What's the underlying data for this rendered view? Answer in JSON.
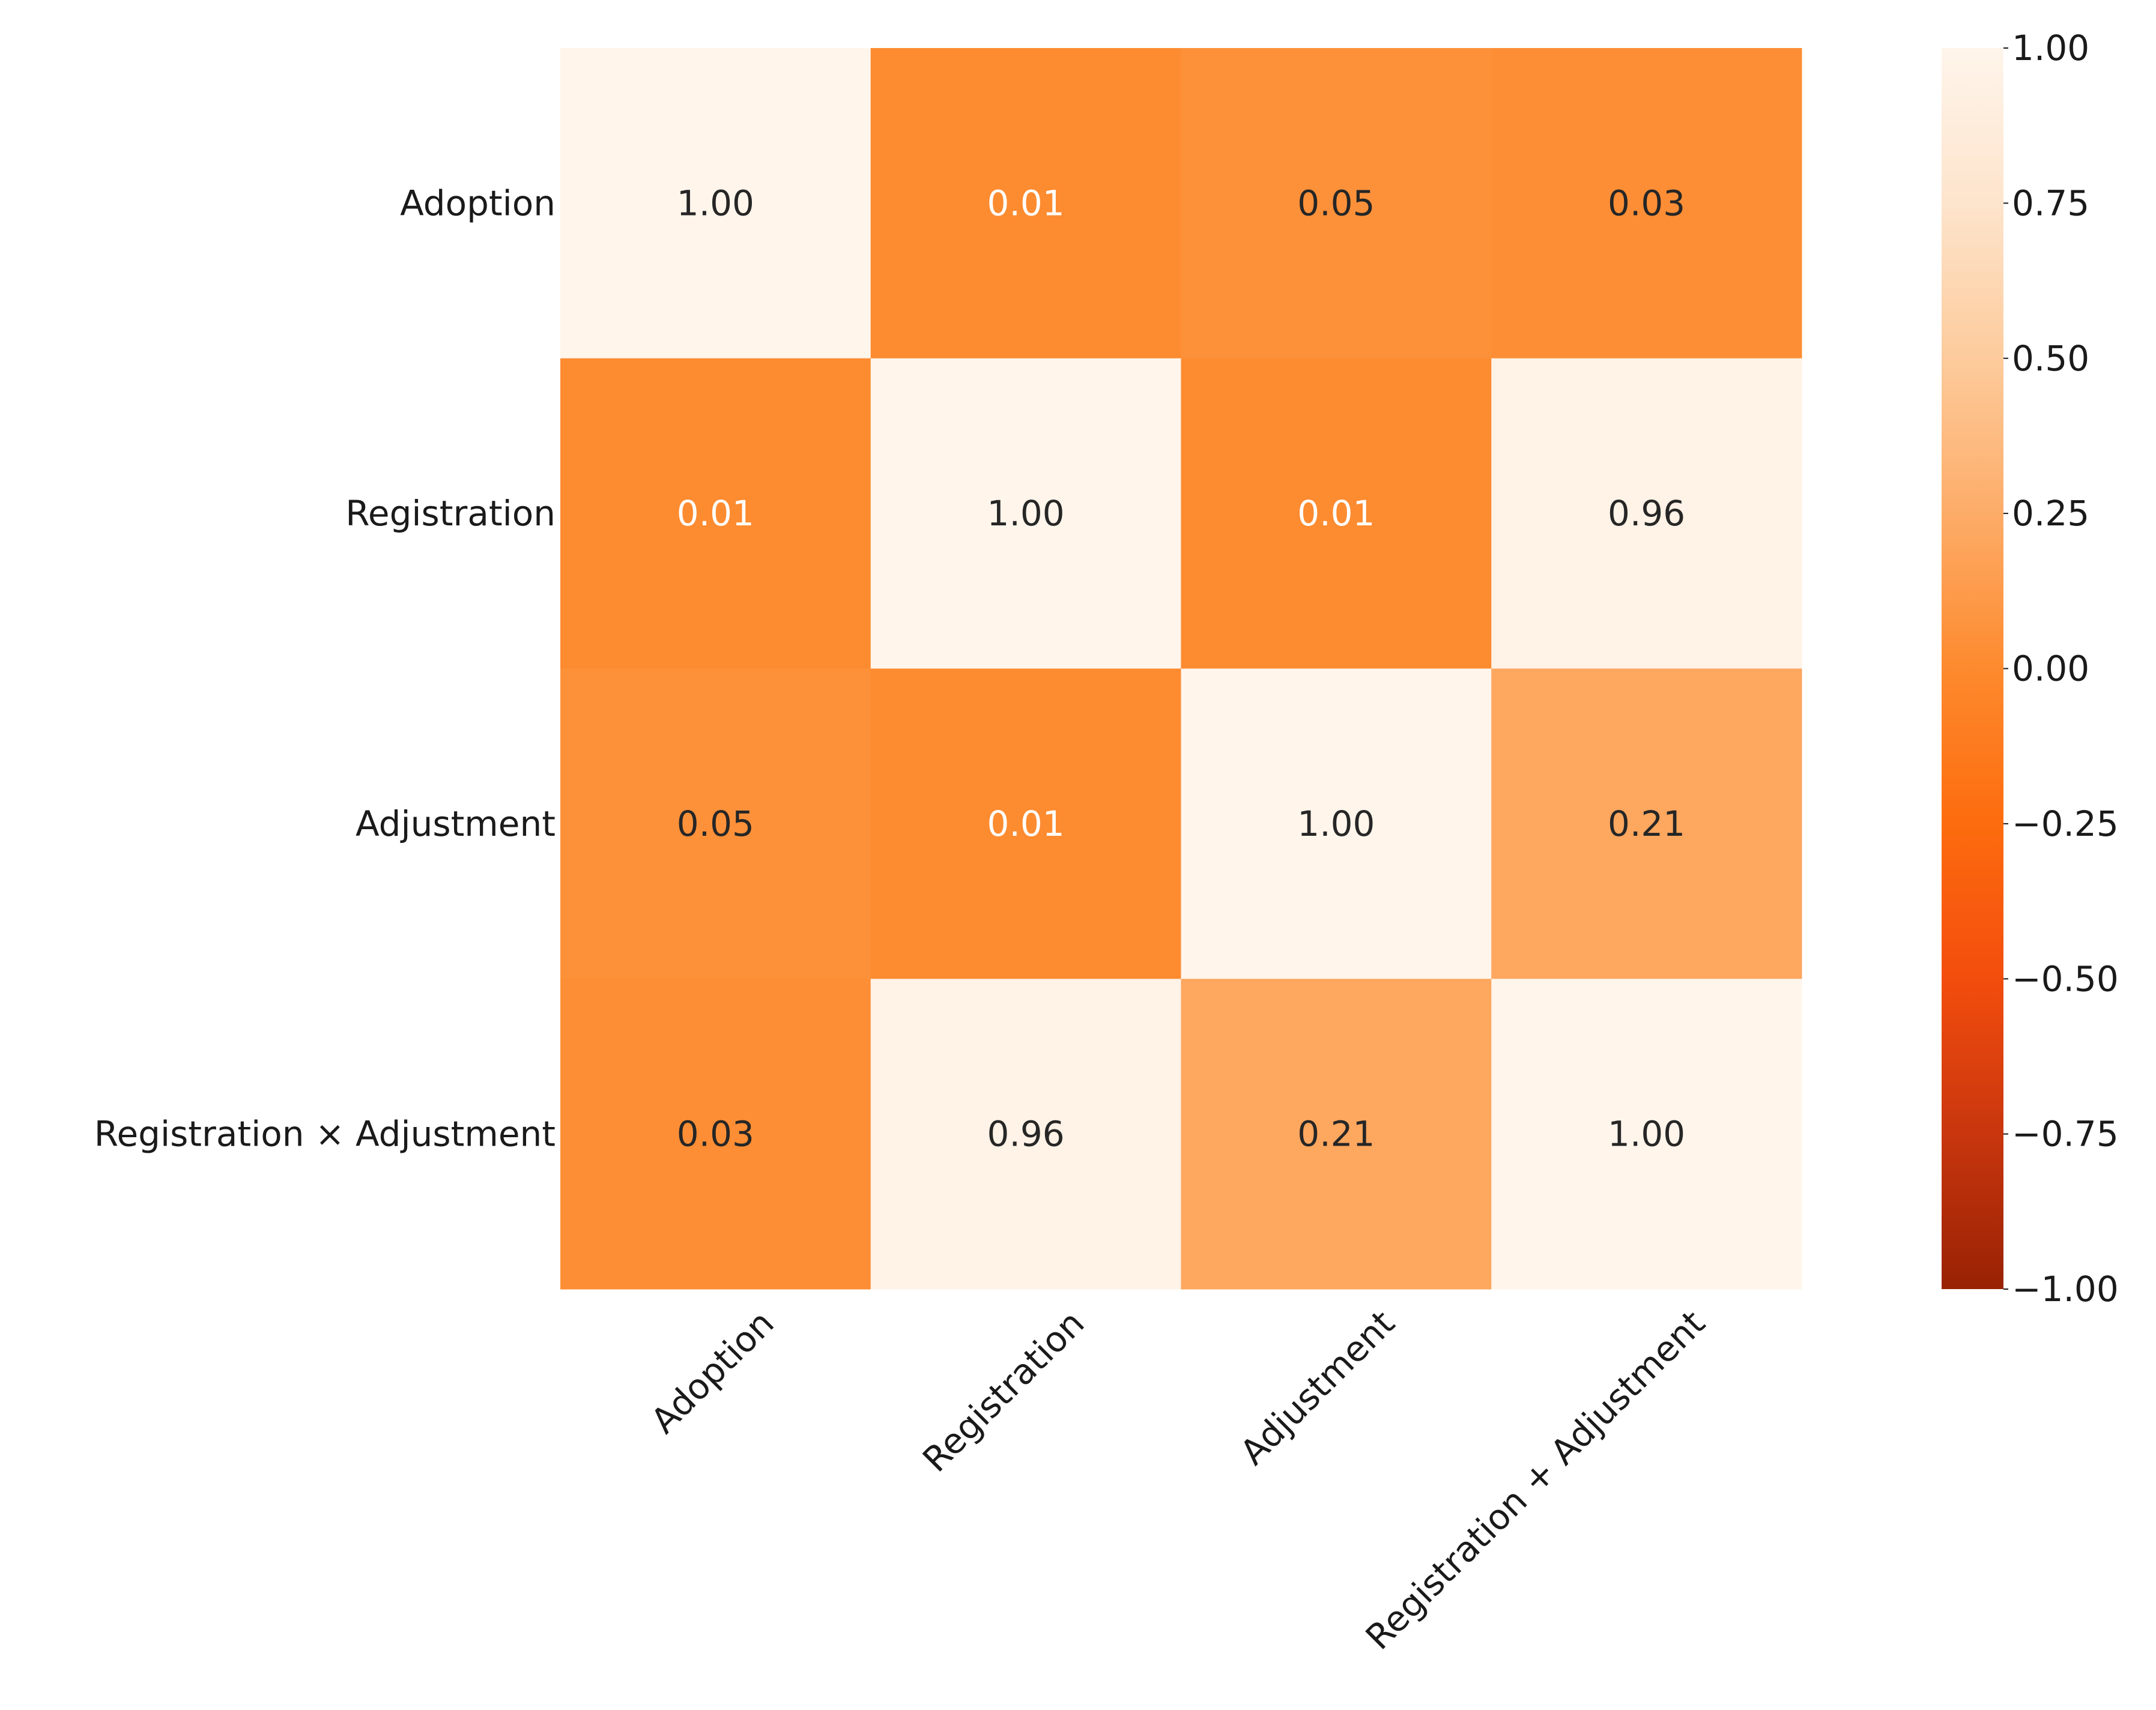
{
  "chart_data": {
    "type": "heatmap",
    "title": "",
    "xlabel": "",
    "ylabel": "",
    "row_labels": [
      "Adoption",
      "Registration",
      "Adjustment",
      "Registration × Adjustment"
    ],
    "col_labels": [
      "Adoption",
      "Registration",
      "Adjustment",
      "Registration + Adjustment"
    ],
    "values": [
      [
        1.0,
        0.01,
        0.05,
        0.03
      ],
      [
        0.01,
        1.0,
        0.01,
        0.96
      ],
      [
        0.05,
        0.01,
        1.0,
        0.21
      ],
      [
        0.03,
        0.96,
        0.21,
        1.0
      ]
    ],
    "cell_labels": [
      [
        "1.00",
        "0.01",
        "0.05",
        "0.03"
      ],
      [
        "0.01",
        "1.00",
        "0.01",
        "0.96"
      ],
      [
        "0.05",
        "0.01",
        "1.00",
        "0.21"
      ],
      [
        "0.03",
        "0.96",
        "0.21",
        "1.00"
      ]
    ],
    "colorbar": {
      "min": -1.0,
      "max": 1.0,
      "ticks": [
        1.0,
        0.75,
        0.5,
        0.25,
        0.0,
        -0.25,
        -0.5,
        -0.75,
        -1.0
      ],
      "tick_labels": [
        "1.00",
        "0.75",
        "0.50",
        "0.25",
        "0.00",
        "−0.25",
        "−0.50",
        "−0.75",
        "−1.00"
      ],
      "stops": [
        {
          "value": -1.0,
          "color": "#982204"
        },
        {
          "value": -0.75,
          "color": "#c8360e"
        },
        {
          "value": -0.5,
          "color": "#f34d0d"
        },
        {
          "value": -0.25,
          "color": "#fd6c0e"
        },
        {
          "value": 0.0,
          "color": "#fd8a2e"
        },
        {
          "value": 0.25,
          "color": "#fdac68"
        },
        {
          "value": 0.5,
          "color": "#fdcb9c"
        },
        {
          "value": 0.75,
          "color": "#fde4cc"
        },
        {
          "value": 1.0,
          "color": "#fff5eb"
        }
      ]
    }
  }
}
